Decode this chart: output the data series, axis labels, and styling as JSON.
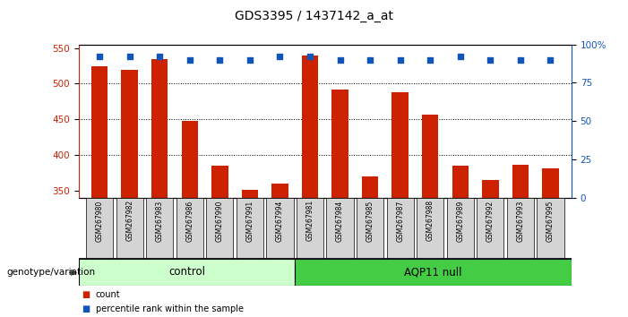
{
  "title": "GDS3395 / 1437142_a_at",
  "samples": [
    "GSM267980",
    "GSM267982",
    "GSM267983",
    "GSM267986",
    "GSM267990",
    "GSM267991",
    "GSM267994",
    "GSM267981",
    "GSM267984",
    "GSM267985",
    "GSM267987",
    "GSM267988",
    "GSM267989",
    "GSM267992",
    "GSM267993",
    "GSM267995"
  ],
  "counts": [
    525,
    520,
    535,
    448,
    385,
    352,
    360,
    540,
    492,
    370,
    488,
    457,
    385,
    365,
    387,
    382
  ],
  "percentile_ranks": [
    92,
    92,
    92,
    90,
    90,
    90,
    92,
    92,
    90,
    90,
    90,
    90,
    92,
    90,
    90,
    90
  ],
  "n_control": 7,
  "ylim_left": [
    340,
    555
  ],
  "yticks_left": [
    350,
    400,
    450,
    500,
    550
  ],
  "yticks_right": [
    0,
    25,
    50,
    75,
    100
  ],
  "bar_color": "#cc2200",
  "dot_color": "#1155bb",
  "control_bg_color": "#ccffcc",
  "aqp11_bg_color": "#44cc44",
  "sample_box_color": "#d4d4d4",
  "control_label": "control",
  "aqp11_label": "AQP11 null",
  "genotype_label": "genotype/variation",
  "legend_count": "count",
  "legend_percentile": "percentile rank within the sample",
  "bar_color_label": "#cc2200",
  "dot_color_label": "#1155bb",
  "title_fontsize": 10,
  "bar_width": 0.55
}
